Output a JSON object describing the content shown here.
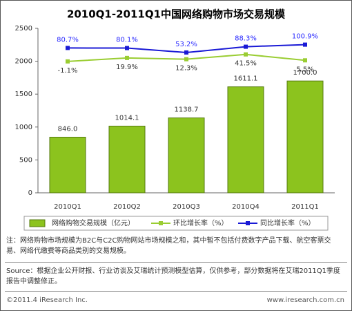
{
  "chart_data": {
    "type": "bar",
    "title": "2010Q1-2011Q1中国网络购物市场交易规模",
    "categories": [
      "2010Q1",
      "2010Q2",
      "2010Q3",
      "2010Q4",
      "2011Q1"
    ],
    "ylim": [
      0,
      2500
    ],
    "yticks": [
      0,
      500,
      1000,
      1500,
      2000,
      2500
    ],
    "y2lim": [
      -800,
      200
    ],
    "grid": false,
    "series": [
      {
        "name": "网络购物交易规模（亿元）",
        "type": "bar",
        "color": "#8cc31e",
        "values": [
          846.0,
          1014.1,
          1138.7,
          1611.1,
          1700.0
        ],
        "value_labels": [
          "846.0",
          "1014.1",
          "1138.7",
          "1611.1",
          "1700.0"
        ]
      },
      {
        "name": "环比增长率（%）",
        "type": "line",
        "axis": "y2",
        "color": "#9acd32",
        "values": [
          -1.1,
          19.9,
          12.3,
          41.5,
          5.5
        ],
        "value_labels": [
          "-1.1%",
          "19.9%",
          "12.3%",
          "41.5%",
          "5.5%"
        ]
      },
      {
        "name": "同比增长率（%）",
        "type": "line",
        "axis": "y2",
        "color": "#1a1ad6",
        "values": [
          80.7,
          80.1,
          53.2,
          88.3,
          100.9
        ],
        "value_labels": [
          "80.7%",
          "80.1%",
          "53.2%",
          "88.3%",
          "100.9%"
        ]
      }
    ]
  },
  "note": "注：网络购物市场规模为B2C与C2C购物网站市场规模之和，其中暂不包括付费数字产品下载、航空客票交易、网络代缴费等商品类别的交易规模。",
  "source": "Source：根据企业公开财报、行业访谈及艾瑞统计预测模型估算，仅供参考，部分数据将在艾瑞2011Q1季度报告中调整修正。",
  "copyright": "©2011.4 iResearch Inc.",
  "website": "www.iresearch.com.cn"
}
